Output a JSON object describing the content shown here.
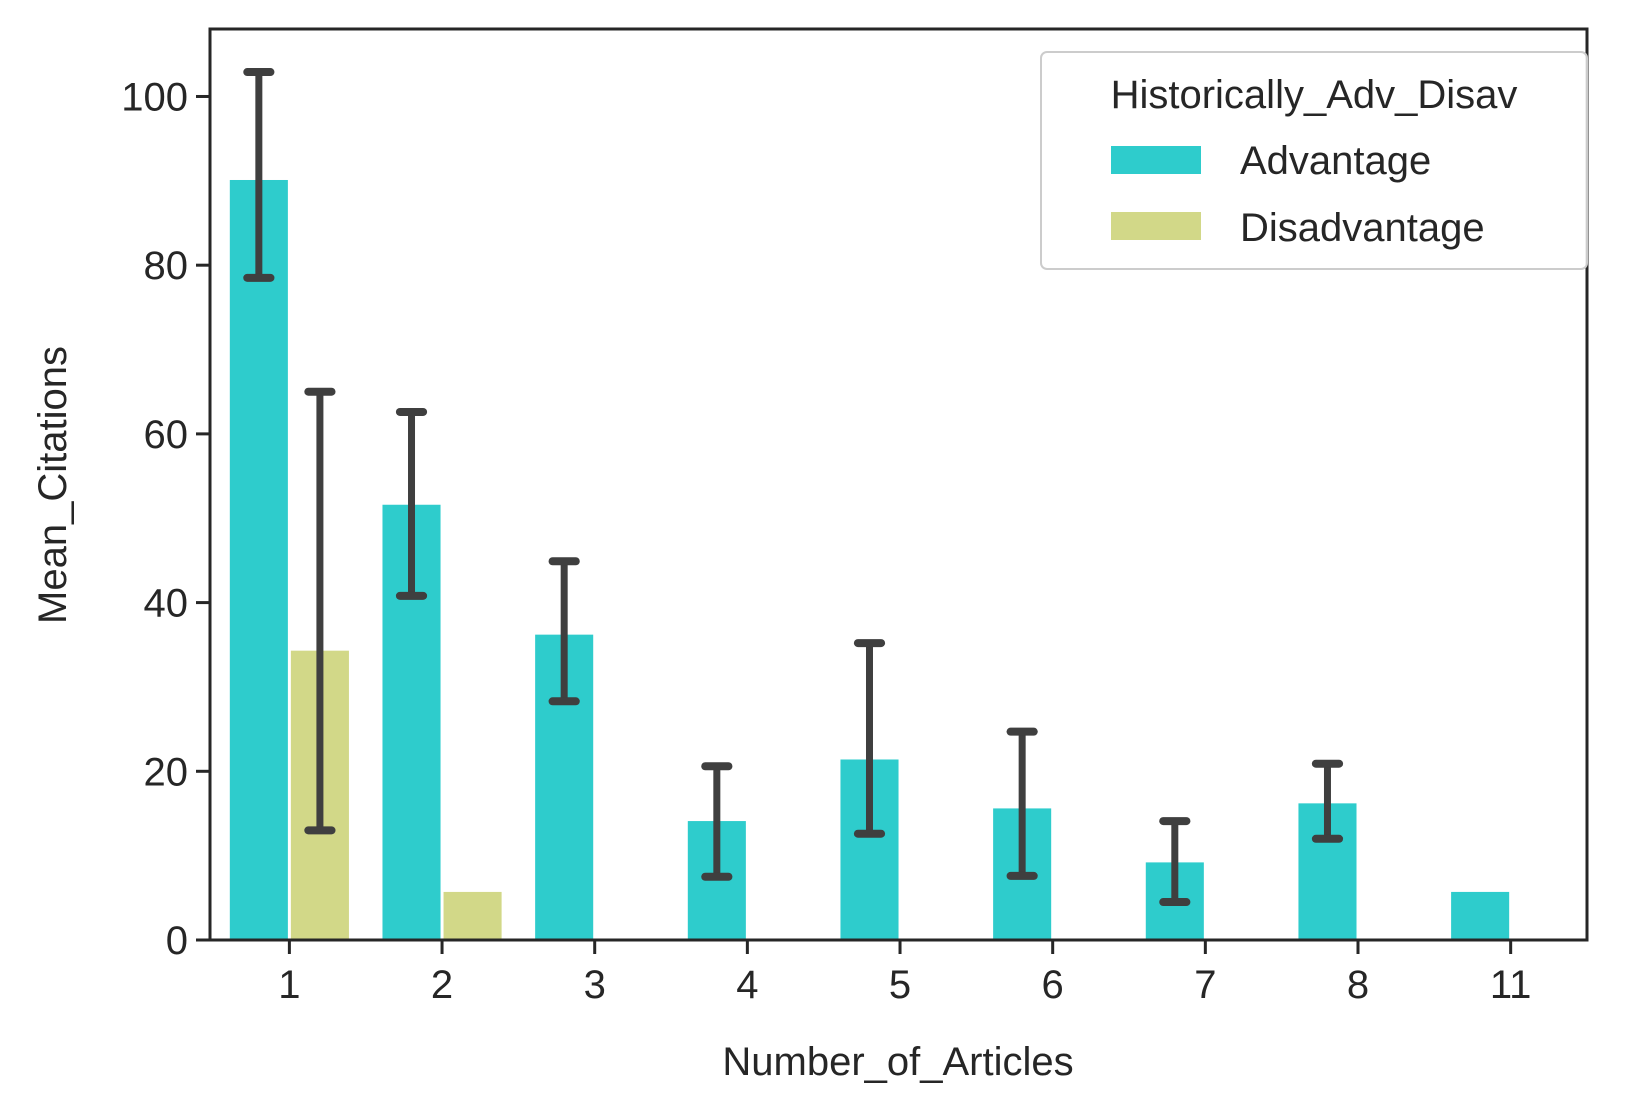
{
  "chart_data": {
    "type": "bar",
    "title": "",
    "xlabel": "Number_of_Articles",
    "ylabel": "Mean_Citations",
    "categories": [
      "1",
      "2",
      "3",
      "4",
      "5",
      "6",
      "7",
      "8",
      "11"
    ],
    "ylim": [
      0,
      108
    ],
    "yticks": [
      0,
      20,
      40,
      60,
      80,
      100
    ],
    "grid": false,
    "legend": {
      "title": "Historically_Adv_Disav",
      "placement": "top-right"
    },
    "series": [
      {
        "name": "Advantage",
        "color": "#2ecccc",
        "values": [
          90.1,
          51.6,
          36.2,
          14.1,
          21.4,
          15.6,
          9.2,
          16.2,
          5.7
        ],
        "err_low": [
          78.5,
          40.8,
          28.3,
          7.5,
          12.6,
          7.6,
          4.5,
          12.0,
          null
        ],
        "err_high": [
          102.9,
          62.6,
          44.9,
          20.6,
          35.2,
          24.7,
          14.1,
          20.9,
          null
        ]
      },
      {
        "name": "Disadvantage",
        "color": "#d2d888",
        "values": [
          34.3,
          5.7,
          null,
          null,
          null,
          null,
          null,
          null,
          null
        ],
        "err_low": [
          13.0,
          null,
          null,
          null,
          null,
          null,
          null,
          null,
          null
        ],
        "err_high": [
          65.0,
          null,
          null,
          null,
          null,
          null,
          null,
          null,
          null
        ]
      }
    ]
  }
}
